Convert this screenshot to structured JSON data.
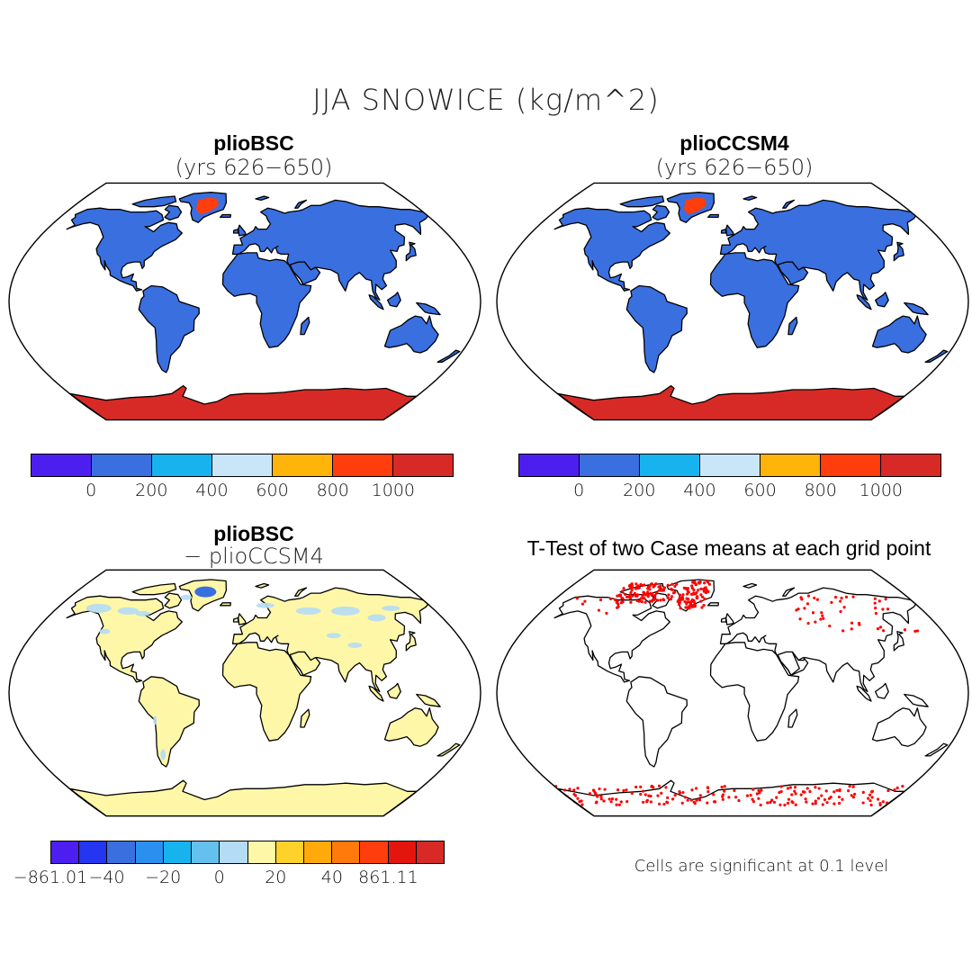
{
  "main_title": "JJA SNOWICE (kg/m^2)",
  "panels": {
    "top_left": {
      "title": "plioBSC",
      "subtitle": "(yrs 626−650)"
    },
    "top_right": {
      "title": "plioCCSM4",
      "subtitle": "(yrs 626−650)"
    },
    "bottom_left": {
      "title": "plioBSC",
      "subtitle": "− plioCCSM4"
    },
    "bottom_right": {
      "title": "T-Test of two Case means at each grid point"
    }
  },
  "colorbar_abs": {
    "colors": [
      "#4c1ff0",
      "#3a6fe0",
      "#17b3ef",
      "#c8e6f8",
      "#ffb40a",
      "#ff3d0d",
      "#d72a26"
    ],
    "ticks": [
      "0",
      "200",
      "400",
      "600",
      "800",
      "1000"
    ]
  },
  "colorbar_diff": {
    "colors": [
      "#4c1ff0",
      "#2436ef",
      "#3a6fe0",
      "#2b8ff0",
      "#17b3ef",
      "#64c0ec",
      "#b5dcf5",
      "#fff7a8",
      "#ffd12b",
      "#ffaa0a",
      "#ff7a0a",
      "#ff3d0d",
      "#e4150d",
      "#d72a26"
    ],
    "ticks": [
      "−861.01",
      "−40",
      "−20",
      "0",
      "20",
      "40",
      "861.11"
    ]
  },
  "significance_note": "Cells are significant at 0.1 level",
  "map_colors": {
    "land_abs": "#3a6fe0",
    "antarctica_abs": "#d72a26",
    "greenland_abs": "#ff3d0d",
    "land_diff": "#fff7a8",
    "land_diff_light_blue": "#b5dcf5",
    "significant_dots": "#ff0000"
  }
}
